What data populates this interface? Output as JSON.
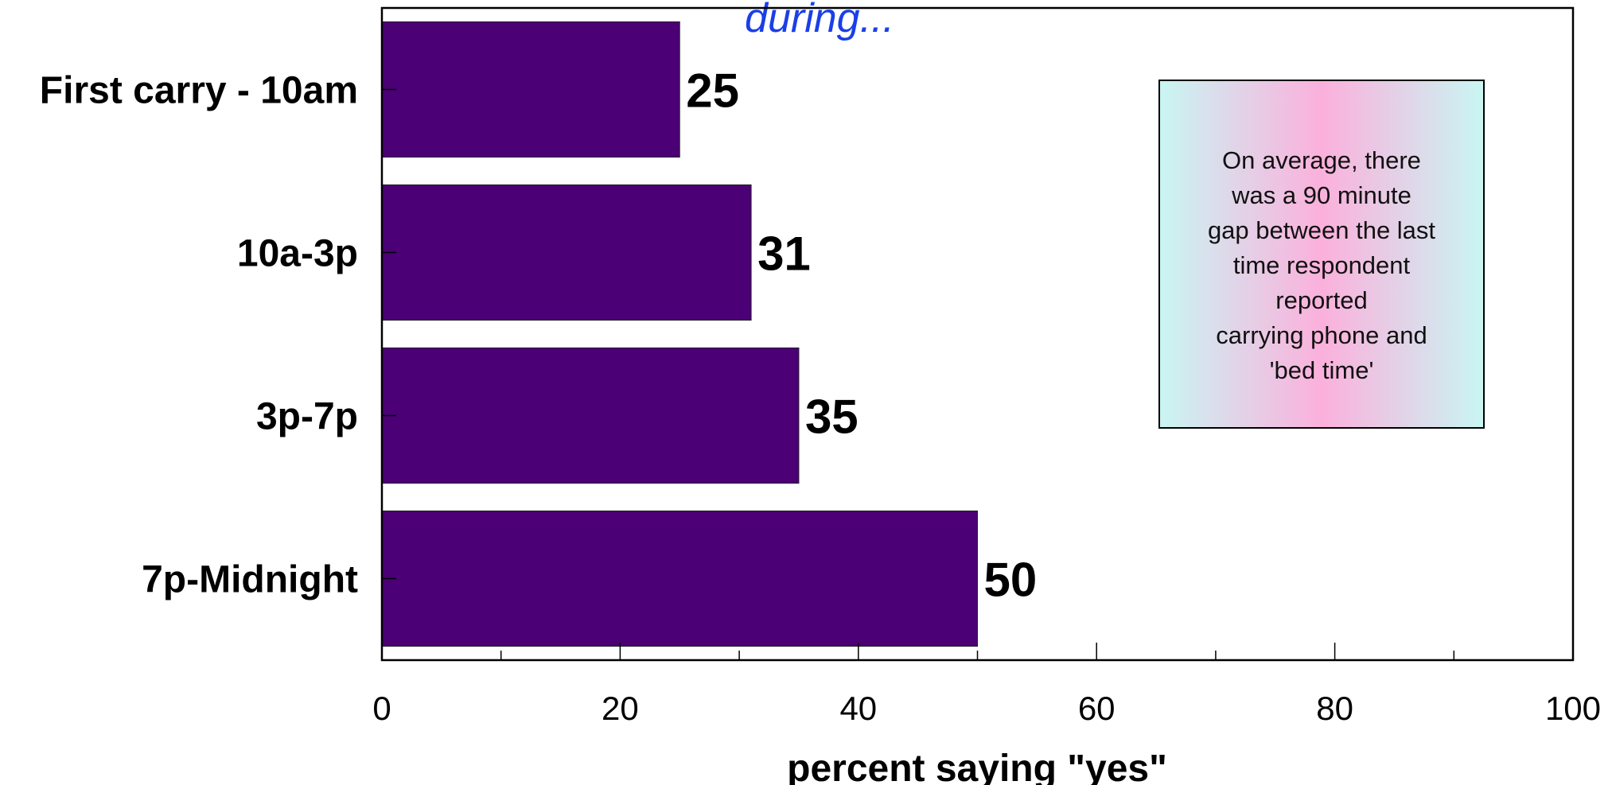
{
  "chart_data": {
    "type": "bar",
    "orientation": "horizontal",
    "title": "during...",
    "categories": [
      "First carry - 10am",
      "10a-3p",
      "3p-7p",
      "7p-Midnight"
    ],
    "values": [
      25,
      31,
      35,
      50
    ],
    "xlabel": "percent saying \"yes\"",
    "ylabel": "",
    "xlim": [
      0,
      100
    ],
    "x_ticks": [
      "0",
      "20",
      "40",
      "60",
      "80",
      "100"
    ],
    "x_minor_step": 10,
    "grid": false,
    "legend": "none",
    "bar_color": "#4B0076",
    "title_color": "#1A3FE8",
    "annotation": {
      "lines": [
        "On average, there",
        "was a 90 minute",
        "gap between the last",
        "time respondent",
        "reported",
        "carrying phone and",
        "'bed time'"
      ],
      "gradient": [
        "#C9F6F3",
        "#FBB0DC",
        "#C9F6F3"
      ]
    }
  }
}
